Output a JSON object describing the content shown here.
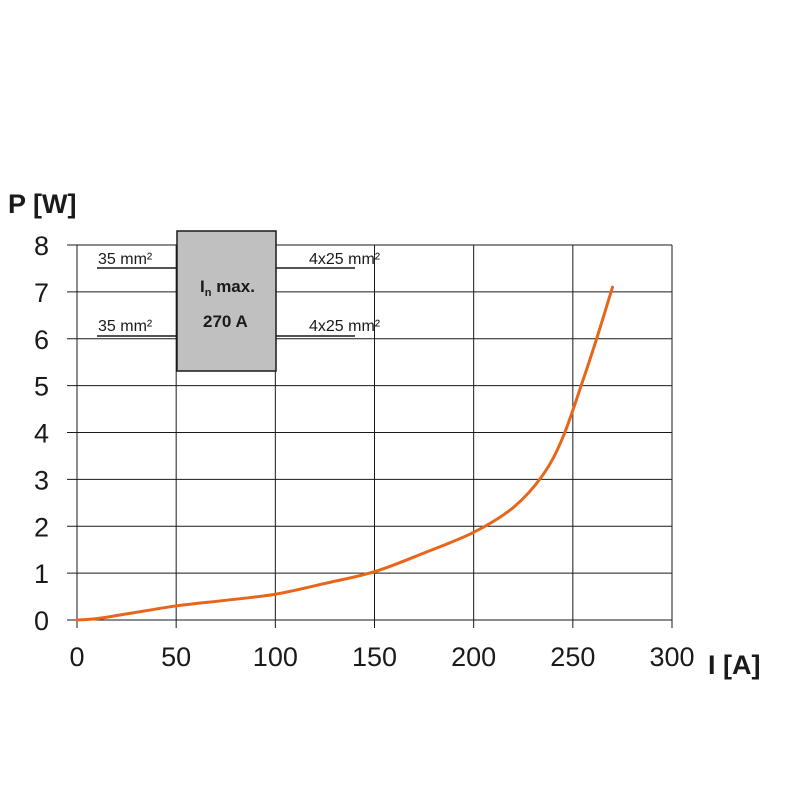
{
  "chart_data": {
    "type": "line",
    "xlabel": "I [A]",
    "ylabel": "P [W]",
    "xlim": [
      0,
      300
    ],
    "ylim": [
      0,
      8
    ],
    "x_ticks": [
      "0",
      "50",
      "100",
      "150",
      "200",
      "250",
      "300"
    ],
    "y_ticks": [
      "0",
      "1",
      "2",
      "3",
      "4",
      "5",
      "6",
      "7",
      "8"
    ],
    "grid": true,
    "series": [
      {
        "color": "#e8661a",
        "x": [
          0,
          10,
          25,
          50,
          75,
          100,
          125,
          150,
          175,
          200,
          220,
          235,
          245,
          255,
          262,
          270
        ],
        "y": [
          0,
          0.03,
          0.13,
          0.3,
          0.42,
          0.55,
          0.78,
          1.03,
          1.43,
          1.87,
          2.4,
          3.1,
          3.9,
          5.1,
          6.0,
          7.1
        ]
      }
    ],
    "annotation": {
      "block_text_main": "I",
      "block_text_sub": "n",
      "block_text_suffix": " max.",
      "block_rating": "270 A",
      "left_wire_top": "35 mm²",
      "left_wire_bottom": "35 mm²",
      "right_wire_top": "4x25 mm²",
      "right_wire_bottom": "4x25 mm²",
      "block_fill": "#c0c0c0"
    }
  }
}
